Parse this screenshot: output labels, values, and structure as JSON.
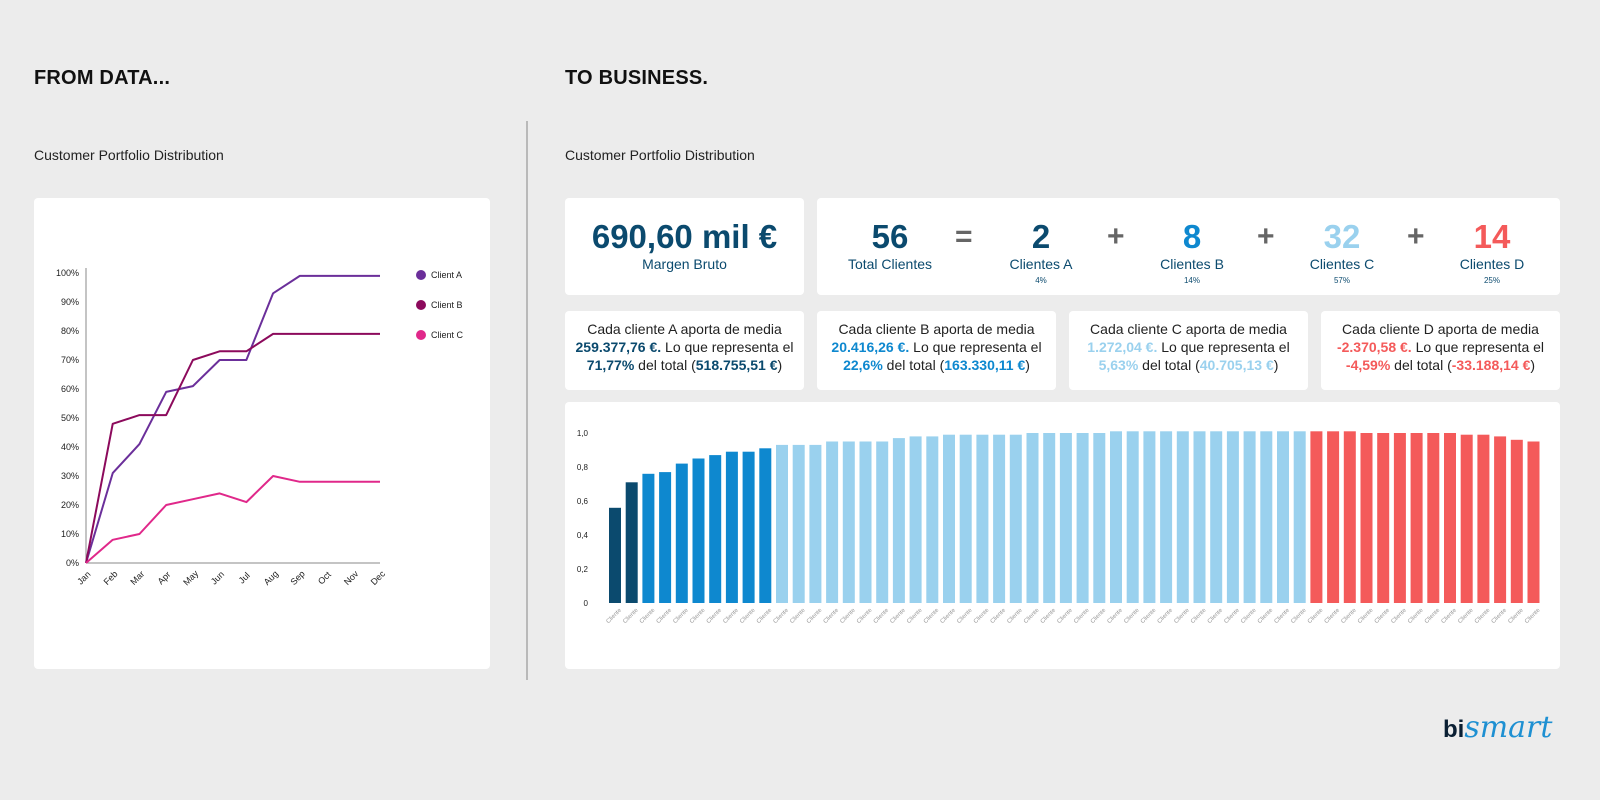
{
  "left_heading": "FROM DATA...",
  "right_heading": "TO BUSINESS.",
  "left_subtitle": "Customer Portfolio Distribution",
  "right_subtitle": "Customer Portfolio Distribution",
  "colors": {
    "clientA": "#6b2f9a",
    "clientB": "#8c0a5c",
    "clientC": "#e0288a",
    "darkblue": "#0b4a6e",
    "blue": "#0e88cf",
    "lightblue": "#9ad1ee",
    "red": "#f45a5a"
  },
  "kpi": {
    "margin_value": "690,60 mil €",
    "margin_label": "Margen Bruto",
    "total_value": "56",
    "total_label": "Total Clientes",
    "eq": "=",
    "plus": "+",
    "a_value": "2",
    "a_label": "Clientes A",
    "a_pct": "4%",
    "b_value": "8",
    "b_label": "Clientes B",
    "b_pct": "14%",
    "c_value": "32",
    "c_label": "Clientes C",
    "c_pct": "57%",
    "d_value": "14",
    "d_label": "Clientes D",
    "d_pct": "25%"
  },
  "cards": [
    {
      "line1": "Cada cliente A aporta de media",
      "avg": "259.377,76 €.",
      "mid": " Lo que representa el",
      "pct": "71,77%",
      "tail": " del total (",
      "total": "518.755,51 €",
      "end": ")"
    },
    {
      "line1": "Cada cliente B aporta de media",
      "avg": "20.416,26 €.",
      "mid": " Lo que representa el",
      "pct": "22,6%",
      "tail": " del total (",
      "total": "163.330,11 €",
      "end": ")"
    },
    {
      "line1": "Cada cliente C aporta de media",
      "avg": "1.272,04 €.",
      "mid": " Lo que representa el",
      "pct": "5,63%",
      "tail": " del total (",
      "total": "40.705,13 €",
      "end": ")"
    },
    {
      "line1": "Cada cliente D aporta de media",
      "avg": "-2.370,58 €.",
      "mid": " Lo que representa el",
      "pct": "-4,59%",
      "tail": " del total (",
      "total": "-33.188,14 €",
      "end": ")"
    }
  ],
  "logo": {
    "bi": "bi",
    "smart": "smart"
  },
  "chart_data": [
    {
      "type": "line",
      "title": "",
      "x": [
        "Jan",
        "Feb",
        "Mar",
        "Apr",
        "May",
        "Jun",
        "Jul",
        "Aug",
        "Sep",
        "Oct",
        "Nov",
        "Dec"
      ],
      "ylim": [
        0,
        100
      ],
      "yticks": [
        "0%",
        "10%",
        "20%",
        "30%",
        "40%",
        "50%",
        "60%",
        "70%",
        "80%",
        "90%",
        "100%"
      ],
      "legend_position": "top-right",
      "grid": false,
      "series": [
        {
          "name": "Client A",
          "color": "#6b2f9a",
          "values": [
            0,
            31,
            41,
            59,
            61,
            70,
            70,
            93,
            99,
            99,
            99,
            99
          ]
        },
        {
          "name": "Client B",
          "color": "#8c0a5c",
          "values": [
            0,
            48,
            51,
            51,
            70,
            73,
            73,
            79,
            79,
            79,
            79,
            79
          ]
        },
        {
          "name": "Client C",
          "color": "#e0288a",
          "values": [
            0,
            8,
            10,
            20,
            22,
            24,
            21,
            30,
            28,
            28,
            28,
            28
          ]
        }
      ]
    },
    {
      "type": "bar",
      "title": "",
      "ylim": [
        0,
        1.0
      ],
      "yticks": [
        "0",
        "0,2",
        "0,4",
        "0,6",
        "0,8",
        "1,0"
      ],
      "grid": false,
      "category_label": "Cliente",
      "categories_count": 56,
      "groups": [
        {
          "name": "Clientes A",
          "color": "#0b4a6e",
          "values": [
            0.56,
            0.71
          ]
        },
        {
          "name": "Clientes B",
          "color": "#0e88cf",
          "values": [
            0.76,
            0.77,
            0.82,
            0.85,
            0.87,
            0.89,
            0.89,
            0.91
          ]
        },
        {
          "name": "Clientes C",
          "color": "#9ad1ee",
          "values": [
            0.93,
            0.93,
            0.93,
            0.95,
            0.95,
            0.95,
            0.95,
            0.97,
            0.98,
            0.98,
            0.99,
            0.99,
            0.99,
            0.99,
            0.99,
            1.0,
            1.0,
            1.0,
            1.0,
            1.0,
            1.01,
            1.01,
            1.01,
            1.01,
            1.01,
            1.01,
            1.01,
            1.01,
            1.01,
            1.01,
            1.01,
            1.01
          ]
        },
        {
          "name": "Clientes D",
          "color": "#f45a5a",
          "values": [
            1.01,
            1.01,
            1.01,
            1.0,
            1.0,
            1.0,
            1.0,
            1.0,
            1.0,
            0.99,
            0.99,
            0.98,
            0.96,
            0.95
          ]
        }
      ]
    }
  ]
}
